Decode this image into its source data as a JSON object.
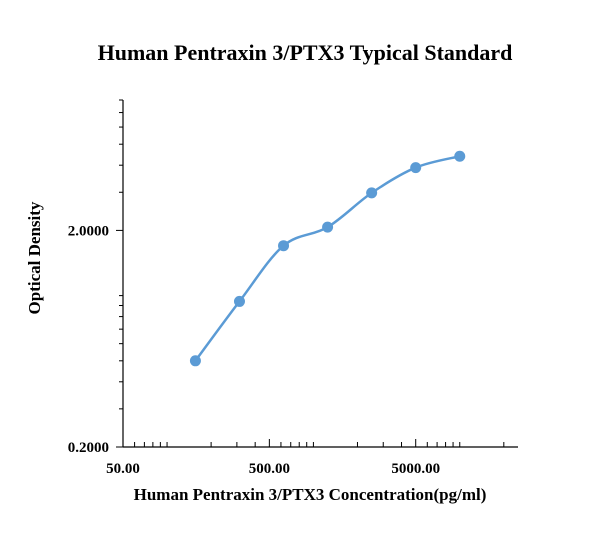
{
  "chart_data": {
    "type": "scatter",
    "title": "Human Pentraxin 3/PTX3 Typical Standard",
    "xlabel": "Human Pentraxin 3/PTX3 Concentration(pg/ml)",
    "ylabel": "Optical Density",
    "x_scale": "log",
    "y_scale": "log",
    "xlim": [
      50,
      25000
    ],
    "ylim": [
      0.2,
      8
    ],
    "x_tick_labels": [
      "50.00",
      "500.00",
      "5000.00"
    ],
    "y_tick_labels": [
      "0.2000",
      "2.0000"
    ],
    "grid": false,
    "series": [
      {
        "x": [
          156.25,
          312.5,
          625,
          1250,
          2500,
          5000,
          10000
        ],
        "y": [
          0.5,
          0.94,
          1.7,
          2.07,
          2.98,
          3.9,
          4.4
        ],
        "color": "#5b9bd5",
        "fit": "smooth curve"
      }
    ]
  }
}
